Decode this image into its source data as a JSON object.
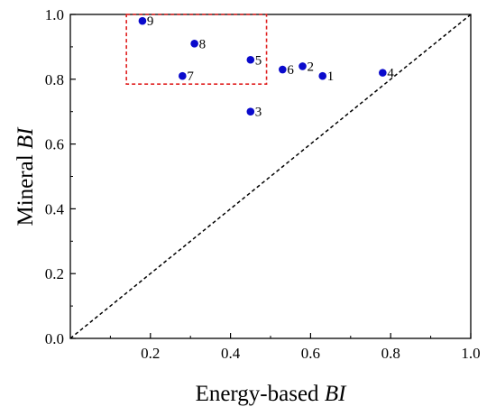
{
  "chart_data": {
    "type": "scatter",
    "xlabel": {
      "prefix": "Energy-based ",
      "italic": "BI"
    },
    "ylabel": {
      "prefix": "Mineral ",
      "italic": "BI"
    },
    "xlim": [
      0,
      1.0
    ],
    "ylim": [
      0,
      1.0
    ],
    "x_ticks": [
      "0.2",
      "0.4",
      "0.6",
      "0.8",
      "1.0"
    ],
    "y_ticks": [
      "0.0",
      "0.2",
      "0.4",
      "0.6",
      "0.8",
      "1.0"
    ],
    "grid": false,
    "legend": "none",
    "marker_color": "#0a0acc",
    "diagonal_line": {
      "style": "dashed",
      "from": [
        0,
        0
      ],
      "to": [
        1,
        1
      ],
      "color": "#000000"
    },
    "highlight_box": {
      "style": "dashed",
      "color": "#e02020",
      "x_range": [
        0.14,
        0.49
      ],
      "y_range": [
        0.785,
        1.0
      ]
    },
    "points": [
      {
        "label": "1",
        "x": 0.63,
        "y": 0.81
      },
      {
        "label": "2",
        "x": 0.58,
        "y": 0.84
      },
      {
        "label": "3",
        "x": 0.45,
        "y": 0.7
      },
      {
        "label": "4",
        "x": 0.78,
        "y": 0.82
      },
      {
        "label": "5",
        "x": 0.45,
        "y": 0.86
      },
      {
        "label": "6",
        "x": 0.53,
        "y": 0.83
      },
      {
        "label": "7",
        "x": 0.28,
        "y": 0.81
      },
      {
        "label": "8",
        "x": 0.31,
        "y": 0.91
      },
      {
        "label": "9",
        "x": 0.18,
        "y": 0.98
      }
    ]
  }
}
